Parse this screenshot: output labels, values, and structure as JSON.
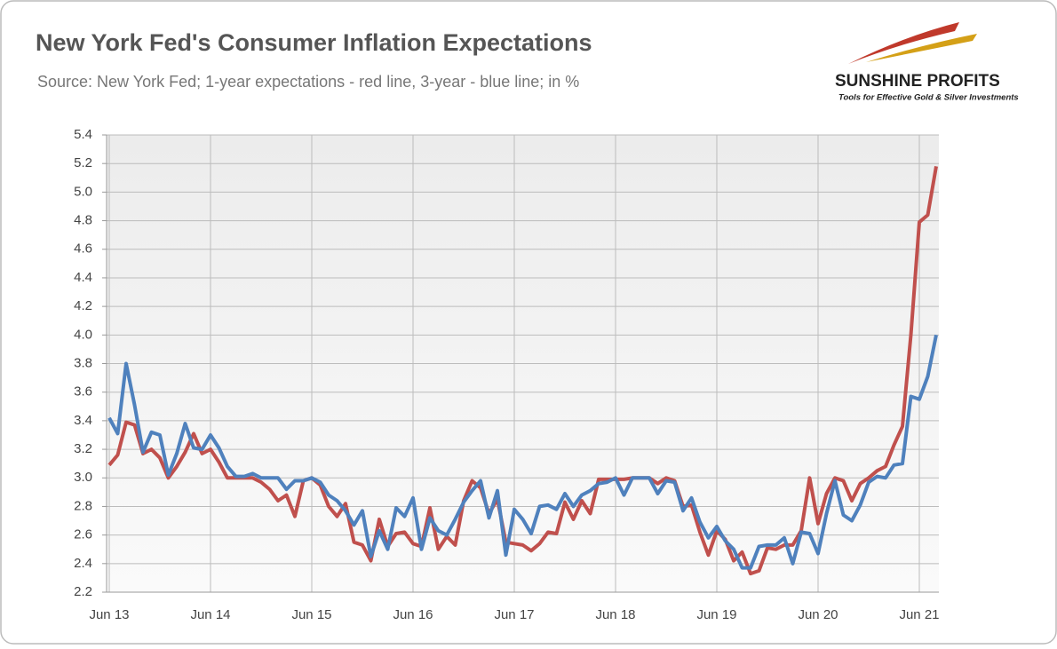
{
  "chart_data": {
    "type": "line",
    "title": "New York Fed's Consumer Inflation Expectations",
    "subtitle": "Source: New York Fed; 1-year expectations - red line, 3-year - blue line; in %",
    "categories": [
      "Jun 13",
      null,
      null,
      null,
      null,
      null,
      null,
      null,
      null,
      null,
      null,
      null,
      "Jun 14",
      null,
      null,
      null,
      null,
      null,
      null,
      null,
      null,
      null,
      null,
      null,
      "Jun 15",
      null,
      null,
      null,
      null,
      null,
      null,
      null,
      null,
      null,
      null,
      null,
      "Jun 16",
      null,
      null,
      null,
      null,
      null,
      null,
      null,
      null,
      null,
      null,
      null,
      "Jun 17",
      null,
      null,
      null,
      null,
      null,
      null,
      null,
      null,
      null,
      null,
      null,
      "Jun 18",
      null,
      null,
      null,
      null,
      null,
      null,
      null,
      null,
      null,
      null,
      null,
      "Jun 19",
      null,
      null,
      null,
      null,
      null,
      null,
      null,
      null,
      null,
      null,
      null,
      "Jun 20",
      null,
      null,
      null,
      null,
      null,
      null,
      null,
      null,
      null,
      null,
      null,
      "Jun 21",
      null,
      null
    ],
    "series": [
      {
        "color": "#c0504d",
        "values": [
          3.09,
          3.16,
          3.39,
          3.37,
          3.17,
          3.2,
          3.14,
          3.0,
          3.08,
          3.18,
          3.31,
          3.17,
          3.2,
          3.11,
          3.0,
          3.0,
          3.0,
          3.0,
          2.97,
          2.92,
          2.84,
          2.88,
          2.73,
          2.98,
          3.0,
          2.95,
          2.8,
          2.73,
          2.82,
          2.55,
          2.53,
          2.42,
          2.71,
          2.52,
          2.61,
          2.62,
          2.54,
          2.52,
          2.79,
          2.5,
          2.59,
          2.53,
          2.84,
          2.98,
          2.93,
          2.75,
          2.85,
          2.55,
          2.54,
          2.53,
          2.49,
          2.54,
          2.62,
          2.61,
          2.83,
          2.71,
          2.84,
          2.75,
          2.99,
          2.99,
          2.99,
          2.99,
          3.0,
          3.0,
          3.0,
          2.96,
          3.0,
          2.98,
          2.8,
          2.81,
          2.62,
          2.46,
          2.63,
          2.57,
          2.42,
          2.48,
          2.33,
          2.35,
          2.51,
          2.5,
          2.53,
          2.53,
          2.63,
          3.0,
          2.68,
          2.89,
          3.0,
          2.98,
          2.84,
          2.96,
          3.0,
          3.05,
          3.08,
          3.23,
          3.36,
          4.0,
          4.79,
          4.84,
          5.18
        ]
      },
      {
        "color": "#4f81bd",
        "values": [
          3.42,
          3.31,
          3.8,
          3.51,
          3.18,
          3.32,
          3.3,
          3.02,
          3.17,
          3.38,
          3.21,
          3.2,
          3.3,
          3.21,
          3.08,
          3.01,
          3.01,
          3.03,
          3.0,
          3.0,
          3.0,
          2.92,
          2.98,
          2.98,
          3.0,
          2.97,
          2.88,
          2.84,
          2.77,
          2.67,
          2.77,
          2.45,
          2.63,
          2.5,
          2.79,
          2.73,
          2.86,
          2.5,
          2.72,
          2.63,
          2.6,
          2.71,
          2.83,
          2.91,
          2.98,
          2.72,
          2.91,
          2.46,
          2.78,
          2.71,
          2.61,
          2.8,
          2.81,
          2.78,
          2.89,
          2.8,
          2.88,
          2.91,
          2.96,
          2.97,
          3.0,
          2.88,
          3.0,
          3.0,
          3.0,
          2.89,
          2.98,
          2.97,
          2.77,
          2.86,
          2.69,
          2.58,
          2.66,
          2.56,
          2.5,
          2.37,
          2.37,
          2.52,
          2.53,
          2.53,
          2.58,
          2.4,
          2.62,
          2.61,
          2.47,
          2.75,
          2.98,
          2.74,
          2.7,
          2.81,
          2.97,
          3.01,
          3.0,
          3.09,
          3.1,
          3.57,
          3.55,
          3.71,
          4.0
        ]
      }
    ],
    "ylim": [
      2.2,
      5.4
    ],
    "yticks": [
      2.2,
      2.4,
      2.6,
      2.8,
      {
        "value": 3,
        "label": "3.0"
      },
      3.2,
      3.4,
      3.6,
      3.8,
      {
        "value": 4,
        "label": "4.0"
      },
      4.2,
      4.4,
      4.6,
      4.8,
      {
        "value": 5,
        "label": "5.0"
      },
      5.2,
      5.4
    ],
    "grid": true
  },
  "logo": {
    "name": "SUNSHINE PROFITS",
    "tagline": "Tools for Effective Gold & Silver Investments"
  }
}
